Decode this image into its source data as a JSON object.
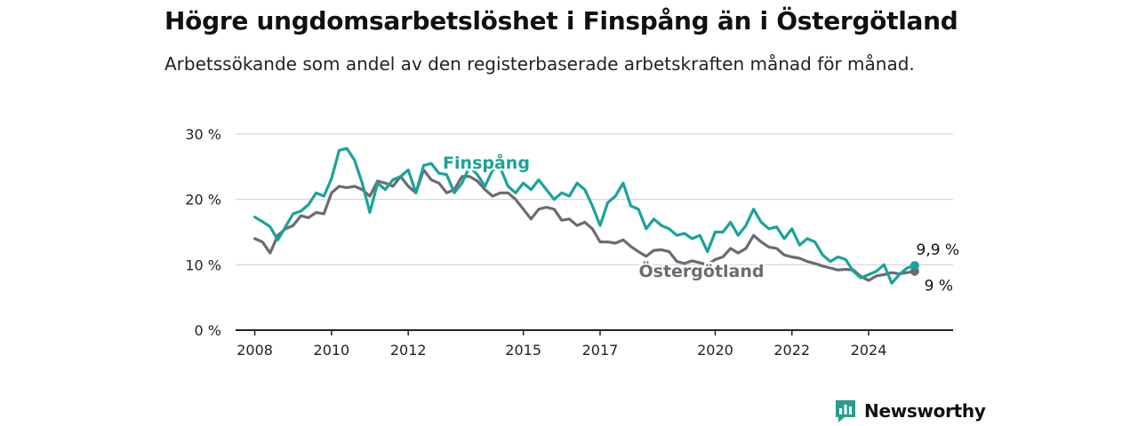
{
  "header": {
    "title": "Högre ungdomsarbetslöshet i Finspång än i Östergötland",
    "subtitle": "Arbetssökande som andel av den registerbaserade arbetskraften månad för månad."
  },
  "brand": {
    "name": "Newsworthy",
    "color": "#2a9d8f",
    "icon": "newsworthy-logo-icon"
  },
  "chart_data": {
    "type": "line",
    "y_ticks": [
      "0 %",
      "10 %",
      "20 %",
      "30 %"
    ],
    "x_ticks": [
      "2008",
      "2010",
      "2012",
      "2015",
      "2017",
      "2020",
      "2022",
      "2024"
    ],
    "ylim": [
      0,
      30
    ],
    "xlim": [
      2007.5,
      2026.2
    ],
    "grid": true,
    "series": [
      {
        "name": "Finspång",
        "color": "#1aa39a",
        "end_label": "9,9 %",
        "points": [
          [
            2008.0,
            17.3
          ],
          [
            2008.2,
            16.6
          ],
          [
            2008.4,
            15.8
          ],
          [
            2008.6,
            13.8
          ],
          [
            2008.8,
            15.8
          ],
          [
            2009.0,
            17.8
          ],
          [
            2009.2,
            18.2
          ],
          [
            2009.4,
            19.2
          ],
          [
            2009.6,
            21.0
          ],
          [
            2009.8,
            20.5
          ],
          [
            2010.0,
            23.2
          ],
          [
            2010.2,
            27.5
          ],
          [
            2010.4,
            27.8
          ],
          [
            2010.6,
            26.0
          ],
          [
            2010.8,
            22.5
          ],
          [
            2011.0,
            18.0
          ],
          [
            2011.2,
            22.5
          ],
          [
            2011.4,
            21.5
          ],
          [
            2011.6,
            23.0
          ],
          [
            2011.8,
            23.5
          ],
          [
            2012.0,
            24.5
          ],
          [
            2012.2,
            21.0
          ],
          [
            2012.4,
            25.2
          ],
          [
            2012.6,
            25.5
          ],
          [
            2012.8,
            24.0
          ],
          [
            2013.0,
            23.8
          ],
          [
            2013.2,
            21.0
          ],
          [
            2013.4,
            22.5
          ],
          [
            2013.6,
            25.0
          ],
          [
            2013.8,
            23.8
          ],
          [
            2014.0,
            22.0
          ],
          [
            2014.2,
            24.5
          ],
          [
            2014.4,
            24.8
          ],
          [
            2014.6,
            22.0
          ],
          [
            2014.8,
            21.0
          ],
          [
            2015.0,
            22.5
          ],
          [
            2015.2,
            21.5
          ],
          [
            2015.4,
            23.0
          ],
          [
            2015.6,
            21.5
          ],
          [
            2015.8,
            20.0
          ],
          [
            2016.0,
            21.0
          ],
          [
            2016.2,
            20.5
          ],
          [
            2016.4,
            22.5
          ],
          [
            2016.6,
            21.5
          ],
          [
            2016.8,
            19.0
          ],
          [
            2017.0,
            16.0
          ],
          [
            2017.2,
            19.5
          ],
          [
            2017.4,
            20.5
          ],
          [
            2017.6,
            22.5
          ],
          [
            2017.8,
            19.0
          ],
          [
            2018.0,
            18.5
          ],
          [
            2018.2,
            15.5
          ],
          [
            2018.4,
            17.0
          ],
          [
            2018.6,
            16.0
          ],
          [
            2018.8,
            15.5
          ],
          [
            2019.0,
            14.5
          ],
          [
            2019.2,
            14.8
          ],
          [
            2019.4,
            14.0
          ],
          [
            2019.6,
            14.5
          ],
          [
            2019.8,
            12.0
          ],
          [
            2020.0,
            15.0
          ],
          [
            2020.2,
            15.0
          ],
          [
            2020.4,
            16.5
          ],
          [
            2020.6,
            14.5
          ],
          [
            2020.8,
            16.0
          ],
          [
            2021.0,
            18.5
          ],
          [
            2021.2,
            16.5
          ],
          [
            2021.4,
            15.5
          ],
          [
            2021.6,
            15.8
          ],
          [
            2021.8,
            14.0
          ],
          [
            2022.0,
            15.5
          ],
          [
            2022.2,
            13.0
          ],
          [
            2022.4,
            14.0
          ],
          [
            2022.6,
            13.5
          ],
          [
            2022.8,
            11.5
          ],
          [
            2023.0,
            10.5
          ],
          [
            2023.2,
            11.2
          ],
          [
            2023.4,
            10.8
          ],
          [
            2023.6,
            9.0
          ],
          [
            2023.8,
            8.0
          ],
          [
            2024.0,
            8.5
          ],
          [
            2024.2,
            9.0
          ],
          [
            2024.4,
            10.0
          ],
          [
            2024.6,
            7.2
          ],
          [
            2024.8,
            8.5
          ],
          [
            2025.0,
            9.5
          ],
          [
            2025.2,
            9.9
          ]
        ]
      },
      {
        "name": "Östergötland",
        "color": "#6d6a72",
        "end_label": "9 %",
        "points": [
          [
            2008.0,
            14.0
          ],
          [
            2008.2,
            13.5
          ],
          [
            2008.4,
            11.8
          ],
          [
            2008.6,
            14.5
          ],
          [
            2008.8,
            15.5
          ],
          [
            2009.0,
            16.0
          ],
          [
            2009.2,
            17.5
          ],
          [
            2009.4,
            17.2
          ],
          [
            2009.6,
            18.0
          ],
          [
            2009.8,
            17.8
          ],
          [
            2010.0,
            21.0
          ],
          [
            2010.2,
            22.0
          ],
          [
            2010.4,
            21.8
          ],
          [
            2010.6,
            22.0
          ],
          [
            2010.8,
            21.5
          ],
          [
            2011.0,
            20.5
          ],
          [
            2011.2,
            22.8
          ],
          [
            2011.4,
            22.5
          ],
          [
            2011.6,
            22.0
          ],
          [
            2011.8,
            23.5
          ],
          [
            2012.0,
            22.0
          ],
          [
            2012.2,
            21.0
          ],
          [
            2012.4,
            24.5
          ],
          [
            2012.6,
            23.0
          ],
          [
            2012.8,
            22.5
          ],
          [
            2013.0,
            21.0
          ],
          [
            2013.2,
            21.5
          ],
          [
            2013.4,
            23.5
          ],
          [
            2013.6,
            23.5
          ],
          [
            2013.8,
            22.8
          ],
          [
            2014.0,
            21.5
          ],
          [
            2014.2,
            20.5
          ],
          [
            2014.4,
            21.0
          ],
          [
            2014.6,
            21.0
          ],
          [
            2014.8,
            20.0
          ],
          [
            2015.0,
            18.5
          ],
          [
            2015.2,
            17.0
          ],
          [
            2015.4,
            18.5
          ],
          [
            2015.6,
            18.8
          ],
          [
            2015.8,
            18.5
          ],
          [
            2016.0,
            16.8
          ],
          [
            2016.2,
            17.0
          ],
          [
            2016.4,
            16.0
          ],
          [
            2016.6,
            16.5
          ],
          [
            2016.8,
            15.5
          ],
          [
            2017.0,
            13.5
          ],
          [
            2017.2,
            13.5
          ],
          [
            2017.4,
            13.3
          ],
          [
            2017.6,
            13.8
          ],
          [
            2017.8,
            12.8
          ],
          [
            2018.0,
            12.0
          ],
          [
            2018.2,
            11.3
          ],
          [
            2018.4,
            12.2
          ],
          [
            2018.6,
            12.3
          ],
          [
            2018.8,
            12.0
          ],
          [
            2019.0,
            10.5
          ],
          [
            2019.2,
            10.2
          ],
          [
            2019.4,
            10.6
          ],
          [
            2019.6,
            10.3
          ],
          [
            2019.8,
            10.0
          ],
          [
            2020.0,
            10.8
          ],
          [
            2020.2,
            11.2
          ],
          [
            2020.4,
            12.5
          ],
          [
            2020.6,
            11.8
          ],
          [
            2020.8,
            12.5
          ],
          [
            2021.0,
            14.5
          ],
          [
            2021.2,
            13.5
          ],
          [
            2021.4,
            12.7
          ],
          [
            2021.6,
            12.5
          ],
          [
            2021.8,
            11.5
          ],
          [
            2022.0,
            11.2
          ],
          [
            2022.2,
            11.0
          ],
          [
            2022.4,
            10.5
          ],
          [
            2022.6,
            10.2
          ],
          [
            2022.8,
            9.8
          ],
          [
            2023.0,
            9.5
          ],
          [
            2023.2,
            9.2
          ],
          [
            2023.4,
            9.3
          ],
          [
            2023.6,
            9.2
          ],
          [
            2023.8,
            8.2
          ],
          [
            2024.0,
            7.6
          ],
          [
            2024.2,
            8.3
          ],
          [
            2024.4,
            8.5
          ],
          [
            2024.6,
            8.8
          ],
          [
            2024.8,
            8.6
          ],
          [
            2025.0,
            8.8
          ],
          [
            2025.2,
            9.0
          ]
        ]
      }
    ]
  }
}
